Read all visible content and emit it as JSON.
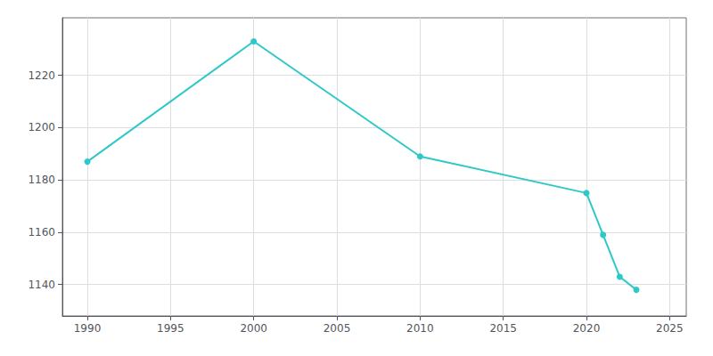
{
  "chart_data": {
    "type": "line",
    "x": [
      1990,
      2000,
      2010,
      2020,
      2021,
      2022,
      2023
    ],
    "values": [
      1187,
      1233,
      1189,
      1175,
      1159,
      1143,
      1138
    ],
    "color": "#2ec8c8",
    "marker": "circle",
    "xlim": [
      1988.5,
      2026
    ],
    "xticks": [
      1990,
      1995,
      2000,
      2005,
      2010,
      2015,
      2020,
      2025
    ],
    "ylim": [
      1128,
      1242
    ],
    "yticks": [
      1140,
      1160,
      1180,
      1200,
      1220
    ],
    "grid": true
  }
}
